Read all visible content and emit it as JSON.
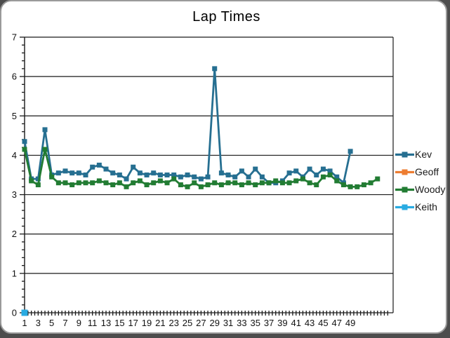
{
  "window": {
    "outer_background": "#4d4d4d",
    "card_background": "#ffffff",
    "card_border": "#9a9a9a",
    "axis_color": "#1a1a1a"
  },
  "chart_data": {
    "type": "line",
    "title": "Lap Times",
    "xlabel": "",
    "ylabel": "",
    "ylim": [
      0,
      7
    ],
    "xlim": [
      1,
      55.3
    ],
    "y_major_step": 1,
    "y_minor_step": 0.2,
    "x_minor_step": 0.5,
    "grid": "horizontal-major",
    "legend_position": "right",
    "y_tick_labels": [
      "0",
      "1",
      "2",
      "3",
      "4",
      "5",
      "6",
      "7"
    ],
    "x_tick_labels": [
      "1",
      "3",
      "5",
      "7",
      "9",
      "11",
      "13",
      "15",
      "17",
      "19",
      "21",
      "23",
      "25",
      "27",
      "29",
      "31",
      "33",
      "35",
      "37",
      "39",
      "41",
      "43",
      "45",
      "47",
      "49"
    ],
    "series": [
      {
        "name": "Kev",
        "color": "#266F91",
        "marker": "square",
        "values": [
          4.35,
          3.4,
          3.4,
          4.65,
          3.5,
          3.55,
          3.6,
          3.55,
          3.55,
          3.5,
          3.7,
          3.75,
          3.65,
          3.55,
          3.5,
          3.4,
          3.7,
          3.55,
          3.5,
          3.55,
          3.5,
          3.5,
          3.5,
          3.45,
          3.5,
          3.45,
          3.4,
          3.45,
          6.2,
          3.55,
          3.5,
          3.45,
          3.6,
          3.45,
          3.65,
          3.45,
          3.3,
          3.3,
          3.35,
          3.55,
          3.6,
          3.45,
          3.65,
          3.5,
          3.65,
          3.6,
          3.45,
          3.3,
          4.1
        ]
      },
      {
        "name": "Geoff",
        "color": "#ED7D31",
        "marker": "square",
        "values": []
      },
      {
        "name": "Woody",
        "color": "#227C33",
        "marker": "square",
        "values": [
          4.15,
          3.35,
          3.25,
          4.15,
          3.45,
          3.3,
          3.3,
          3.25,
          3.3,
          3.3,
          3.3,
          3.35,
          3.3,
          3.25,
          3.3,
          3.2,
          3.3,
          3.35,
          3.25,
          3.3,
          3.35,
          3.3,
          3.4,
          3.25,
          3.2,
          3.3,
          3.2,
          3.25,
          3.3,
          3.25,
          3.3,
          3.3,
          3.25,
          3.3,
          3.25,
          3.3,
          3.3,
          3.35,
          3.3,
          3.3,
          3.35,
          3.4,
          3.3,
          3.25,
          3.45,
          3.5,
          3.35,
          3.25,
          3.2,
          3.2,
          3.25,
          3.3,
          3.4
        ]
      },
      {
        "name": "Keith",
        "color": "#29ABE2",
        "marker": "square",
        "x": [
          1
        ],
        "values": [
          0
        ]
      }
    ]
  }
}
